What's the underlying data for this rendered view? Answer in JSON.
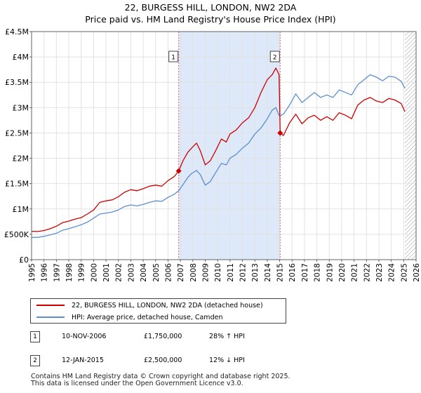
{
  "chart_data": {
    "type": "line",
    "title": "22, BURGESS HILL, LONDON, NW2 2DA",
    "subtitle": "Price paid vs. HM Land Registry's House Price Index (HPI)",
    "xlim": [
      1995,
      2026
    ],
    "ylim": [
      0,
      4500000
    ],
    "x_ticks": [
      1995,
      1996,
      1997,
      1998,
      1999,
      2000,
      2001,
      2002,
      2003,
      2004,
      2005,
      2006,
      2007,
      2008,
      2009,
      2010,
      2011,
      2012,
      2013,
      2014,
      2015,
      2016,
      2017,
      2018,
      2019,
      2020,
      2021,
      2022,
      2023,
      2024,
      2025,
      2026
    ],
    "y_ticks": [
      {
        "value": 0,
        "label": "£0"
      },
      {
        "value": 500000,
        "label": "£500K"
      },
      {
        "value": 1000000,
        "label": "£1M"
      },
      {
        "value": 1500000,
        "label": "£1.5M"
      },
      {
        "value": 2000000,
        "label": "£2M"
      },
      {
        "value": 2500000,
        "label": "£2.5M"
      },
      {
        "value": 3000000,
        "label": "£3M"
      },
      {
        "value": 3500000,
        "label": "£3.5M"
      },
      {
        "value": 4000000,
        "label": "£4M"
      },
      {
        "value": 4500000,
        "label": "£4.5M"
      }
    ],
    "grid": true,
    "series": [
      {
        "name": "22, BURGESS HILL, LONDON, NW2 2DA (detached house)",
        "color": "#cc0000",
        "points": [
          [
            1995.0,
            560000
          ],
          [
            1995.5,
            555000
          ],
          [
            1996.0,
            575000
          ],
          [
            1996.5,
            610000
          ],
          [
            1997.0,
            660000
          ],
          [
            1997.5,
            730000
          ],
          [
            1998.0,
            760000
          ],
          [
            1998.5,
            800000
          ],
          [
            1999.0,
            830000
          ],
          [
            1999.5,
            900000
          ],
          [
            2000.0,
            980000
          ],
          [
            2000.5,
            1130000
          ],
          [
            2001.0,
            1160000
          ],
          [
            2001.5,
            1180000
          ],
          [
            2002.0,
            1240000
          ],
          [
            2002.5,
            1330000
          ],
          [
            2003.0,
            1380000
          ],
          [
            2003.5,
            1360000
          ],
          [
            2004.0,
            1400000
          ],
          [
            2004.5,
            1450000
          ],
          [
            2005.0,
            1470000
          ],
          [
            2005.5,
            1450000
          ],
          [
            2006.0,
            1560000
          ],
          [
            2006.5,
            1640000
          ],
          [
            2006.86,
            1750000
          ],
          [
            2007.2,
            1950000
          ],
          [
            2007.6,
            2120000
          ],
          [
            2007.9,
            2200000
          ],
          [
            2008.3,
            2300000
          ],
          [
            2008.6,
            2150000
          ],
          [
            2009.0,
            1870000
          ],
          [
            2009.4,
            1950000
          ],
          [
            2009.8,
            2130000
          ],
          [
            2010.3,
            2380000
          ],
          [
            2010.7,
            2320000
          ],
          [
            2011.0,
            2480000
          ],
          [
            2011.5,
            2560000
          ],
          [
            2012.0,
            2700000
          ],
          [
            2012.5,
            2800000
          ],
          [
            2013.0,
            3000000
          ],
          [
            2013.5,
            3300000
          ],
          [
            2014.0,
            3550000
          ],
          [
            2014.4,
            3650000
          ],
          [
            2014.7,
            3780000
          ],
          [
            2014.95,
            3650000
          ],
          [
            2015.04,
            2500000
          ],
          [
            2015.3,
            2450000
          ],
          [
            2015.8,
            2700000
          ],
          [
            2016.3,
            2870000
          ],
          [
            2016.8,
            2680000
          ],
          [
            2017.3,
            2800000
          ],
          [
            2017.8,
            2850000
          ],
          [
            2018.3,
            2750000
          ],
          [
            2018.8,
            2820000
          ],
          [
            2019.3,
            2750000
          ],
          [
            2019.8,
            2900000
          ],
          [
            2020.3,
            2850000
          ],
          [
            2020.8,
            2780000
          ],
          [
            2021.3,
            3050000
          ],
          [
            2021.8,
            3150000
          ],
          [
            2022.3,
            3200000
          ],
          [
            2022.8,
            3130000
          ],
          [
            2023.3,
            3100000
          ],
          [
            2023.8,
            3180000
          ],
          [
            2024.3,
            3150000
          ],
          [
            2024.8,
            3080000
          ],
          [
            2025.1,
            2920000
          ]
        ]
      },
      {
        "name": "HPI: Average price, detached house, Camden",
        "color": "#5b8fd1",
        "points": [
          [
            1995.0,
            440000
          ],
          [
            1995.5,
            440000
          ],
          [
            1996.0,
            460000
          ],
          [
            1996.5,
            490000
          ],
          [
            1997.0,
            520000
          ],
          [
            1997.5,
            580000
          ],
          [
            1998.0,
            610000
          ],
          [
            1998.5,
            650000
          ],
          [
            1999.0,
            690000
          ],
          [
            1999.5,
            740000
          ],
          [
            2000.0,
            820000
          ],
          [
            2000.5,
            900000
          ],
          [
            2001.0,
            920000
          ],
          [
            2001.5,
            940000
          ],
          [
            2002.0,
            980000
          ],
          [
            2002.5,
            1050000
          ],
          [
            2003.0,
            1080000
          ],
          [
            2003.5,
            1060000
          ],
          [
            2004.0,
            1090000
          ],
          [
            2004.5,
            1130000
          ],
          [
            2005.0,
            1160000
          ],
          [
            2005.5,
            1150000
          ],
          [
            2006.0,
            1230000
          ],
          [
            2006.5,
            1290000
          ],
          [
            2006.86,
            1360000
          ],
          [
            2007.2,
            1480000
          ],
          [
            2007.6,
            1620000
          ],
          [
            2007.9,
            1700000
          ],
          [
            2008.3,
            1760000
          ],
          [
            2008.6,
            1680000
          ],
          [
            2009.0,
            1470000
          ],
          [
            2009.4,
            1540000
          ],
          [
            2009.8,
            1700000
          ],
          [
            2010.3,
            1900000
          ],
          [
            2010.7,
            1870000
          ],
          [
            2011.0,
            2000000
          ],
          [
            2011.5,
            2080000
          ],
          [
            2012.0,
            2200000
          ],
          [
            2012.5,
            2300000
          ],
          [
            2013.0,
            2480000
          ],
          [
            2013.5,
            2600000
          ],
          [
            2014.0,
            2780000
          ],
          [
            2014.4,
            2950000
          ],
          [
            2014.7,
            3000000
          ],
          [
            2014.95,
            2850000
          ],
          [
            2015.04,
            2840000
          ],
          [
            2015.3,
            2870000
          ],
          [
            2015.8,
            3050000
          ],
          [
            2016.3,
            3270000
          ],
          [
            2016.8,
            3100000
          ],
          [
            2017.3,
            3200000
          ],
          [
            2017.8,
            3300000
          ],
          [
            2018.3,
            3200000
          ],
          [
            2018.8,
            3250000
          ],
          [
            2019.3,
            3200000
          ],
          [
            2019.8,
            3350000
          ],
          [
            2020.3,
            3300000
          ],
          [
            2020.8,
            3250000
          ],
          [
            2021.3,
            3450000
          ],
          [
            2021.8,
            3550000
          ],
          [
            2022.3,
            3650000
          ],
          [
            2022.8,
            3600000
          ],
          [
            2023.3,
            3530000
          ],
          [
            2023.8,
            3620000
          ],
          [
            2024.3,
            3600000
          ],
          [
            2024.8,
            3520000
          ],
          [
            2025.1,
            3380000
          ]
        ]
      }
    ],
    "annotations": [
      {
        "label": "1",
        "x": 2006.86,
        "price": 1750000,
        "line_color": "#e06080"
      },
      {
        "label": "2",
        "x": 2015.04,
        "price": 2500000,
        "line_color": "#e06080"
      }
    ],
    "shaded_spans": [
      {
        "from": 2006.86,
        "to": 2015.04,
        "color": "#dde8f8"
      }
    ],
    "hatched_span": {
      "from": 2025.1,
      "to": 2026
    },
    "legend": [
      {
        "label": "22, BURGESS HILL, LONDON, NW2 2DA (detached house)",
        "color": "#cc0000"
      },
      {
        "label": "HPI: Average price, detached house, Camden",
        "color": "#5b8fd1"
      }
    ]
  },
  "sales": [
    {
      "badge": "1",
      "date": "10-NOV-2006",
      "price": "£1,750,000",
      "hpi": "28% ↑ HPI"
    },
    {
      "badge": "2",
      "date": "12-JAN-2015",
      "price": "£2,500,000",
      "hpi": "12% ↓ HPI"
    }
  ],
  "footer": {
    "line1": "Contains HM Land Registry data © Crown copyright and database right 2025.",
    "line2": "This data is licensed under the Open Government Licence v3.0."
  }
}
